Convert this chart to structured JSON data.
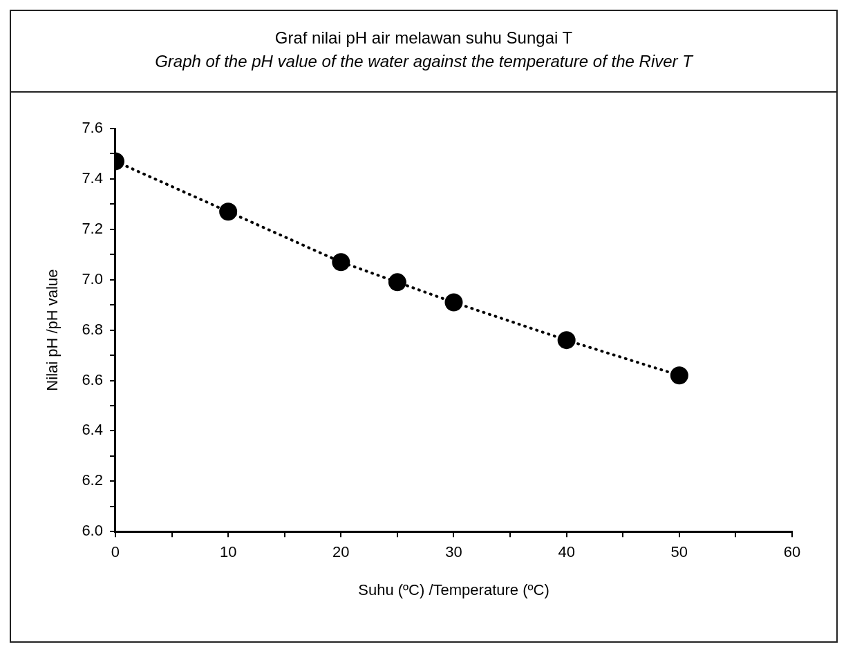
{
  "chart_data": {
    "type": "line",
    "title": "Graf nilai pH air melawan suhu Sungai T",
    "subtitle": "Graph of the pH value of the water against the temperature of the River T",
    "xlabel": "Suhu (ºC) /Temperature (ºC)",
    "ylabel": "Nilai pH /pH value",
    "x": [
      0,
      10,
      20,
      25,
      30,
      40,
      50
    ],
    "series": [
      {
        "color": "#000000",
        "values": [
          7.47,
          7.27,
          7.07,
          6.99,
          6.91,
          6.76,
          6.62
        ]
      }
    ],
    "xlim": [
      0,
      60
    ],
    "xticks": [
      0,
      {
        "value": 5,
        "label": null
      },
      10,
      {
        "value": 15,
        "label": null
      },
      20,
      {
        "value": 25,
        "label": null
      },
      30,
      {
        "value": 35,
        "label": null
      },
      40,
      {
        "value": 45,
        "label": null
      },
      50,
      {
        "value": 55,
        "label": null
      },
      60
    ],
    "ylim": [
      6,
      7.6
    ],
    "yticks": [
      {
        "value": 6,
        "label": "6.0"
      },
      {
        "value": 6.1,
        "label": null
      },
      6.2,
      {
        "value": 6.3,
        "label": null
      },
      6.4,
      {
        "value": 6.5,
        "label": null
      },
      6.6,
      {
        "value": 6.7,
        "label": null
      },
      6.8,
      {
        "value": 6.9,
        "label": null
      },
      {
        "value": 7,
        "label": "7.0"
      },
      {
        "value": 7.1,
        "label": null
      },
      7.2,
      {
        "value": 7.3,
        "label": null
      },
      7.4,
      {
        "value": 7.5,
        "label": null
      },
      7.6
    ],
    "grid": false,
    "legend": false,
    "marker": "circle",
    "line_style": "dotted"
  }
}
